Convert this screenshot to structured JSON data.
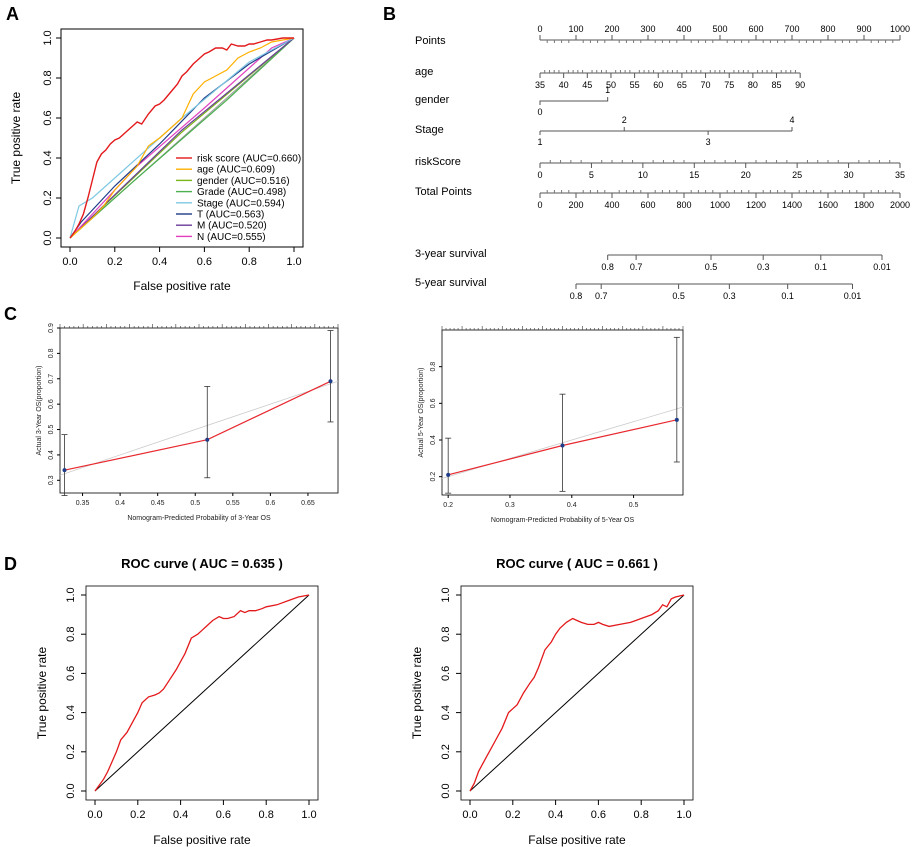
{
  "panel_labels": [
    "A",
    "B",
    "C",
    "D"
  ],
  "colors": {
    "risk": "#e31a1c",
    "age": "#ffb000",
    "gender": "#7cb518",
    "grade": "#4caf50",
    "stage": "#7ec8e3",
    "T": "#1f3c88",
    "M": "#6a3d9a",
    "N": "#e040c0",
    "calib": "#e8292f",
    "ideal": "#cccccc",
    "roc": "#e31a1c"
  },
  "chart_data": [
    {
      "id": "A",
      "type": "line",
      "xlabel": "False positive rate",
      "ylabel": "True positive rate",
      "xlim": [
        0,
        1
      ],
      "ylim": [
        0,
        1
      ],
      "ticks": [
        "0.0",
        "0.2",
        "0.4",
        "0.6",
        "0.8",
        "1.0"
      ],
      "series": [
        {
          "key": "risk",
          "name": "risk score (AUC=0.660)",
          "x": [
            0,
            0.02,
            0.04,
            0.06,
            0.08,
            0.1,
            0.12,
            0.14,
            0.16,
            0.18,
            0.2,
            0.22,
            0.25,
            0.28,
            0.3,
            0.32,
            0.35,
            0.38,
            0.4,
            0.42,
            0.45,
            0.48,
            0.5,
            0.52,
            0.55,
            0.58,
            0.6,
            0.62,
            0.65,
            0.68,
            0.7,
            0.72,
            0.75,
            0.78,
            0.8,
            0.82,
            0.85,
            0.88,
            0.9,
            0.95,
            1.0
          ],
          "y": [
            0,
            0.03,
            0.07,
            0.12,
            0.2,
            0.29,
            0.38,
            0.42,
            0.44,
            0.47,
            0.49,
            0.5,
            0.53,
            0.56,
            0.58,
            0.57,
            0.62,
            0.66,
            0.67,
            0.69,
            0.73,
            0.77,
            0.81,
            0.83,
            0.87,
            0.9,
            0.92,
            0.93,
            0.95,
            0.95,
            0.94,
            0.97,
            0.96,
            0.96,
            0.97,
            0.97,
            0.98,
            0.99,
            0.99,
            1.0,
            1.0
          ]
        },
        {
          "key": "age",
          "name": "age (AUC=0.609)",
          "x": [
            0,
            0.05,
            0.1,
            0.15,
            0.2,
            0.25,
            0.3,
            0.35,
            0.4,
            0.45,
            0.5,
            0.55,
            0.6,
            0.65,
            0.7,
            0.75,
            0.8,
            0.85,
            0.9,
            0.95,
            1.0
          ],
          "y": [
            0,
            0.05,
            0.1,
            0.16,
            0.24,
            0.3,
            0.36,
            0.46,
            0.5,
            0.55,
            0.6,
            0.72,
            0.78,
            0.81,
            0.84,
            0.9,
            0.93,
            0.95,
            0.98,
            0.99,
            1.0
          ]
        },
        {
          "key": "gender",
          "name": "gender (AUC=0.516)",
          "x": [
            0,
            0.5,
            1.0
          ],
          "y": [
            0,
            0.53,
            1.0
          ]
        },
        {
          "key": "grade",
          "name": "Grade (AUC=0.498)",
          "x": [
            0,
            0.3,
            0.7,
            1.0
          ],
          "y": [
            0,
            0.3,
            0.69,
            1.0
          ]
        },
        {
          "key": "stage",
          "name": "Stage (AUC=0.594)",
          "x": [
            0,
            0.04,
            0.1,
            0.25,
            0.5,
            0.8,
            1.0
          ],
          "y": [
            0,
            0.16,
            0.2,
            0.35,
            0.6,
            0.88,
            1.0
          ]
        },
        {
          "key": "T",
          "name": "T (AUC=0.563)",
          "x": [
            0,
            0.05,
            0.2,
            0.4,
            0.6,
            0.8,
            1.0
          ],
          "y": [
            0,
            0.08,
            0.26,
            0.47,
            0.7,
            0.87,
            1.0
          ]
        },
        {
          "key": "M",
          "name": "M (AUC=0.520)",
          "x": [
            0,
            0.5,
            1.0
          ],
          "y": [
            0,
            0.54,
            1.0
          ]
        },
        {
          "key": "N",
          "name": "N (AUC=0.555)",
          "x": [
            0,
            0.3,
            0.6,
            0.9,
            1.0
          ],
          "y": [
            0,
            0.36,
            0.65,
            0.95,
            1.0
          ]
        }
      ]
    },
    {
      "id": "C1",
      "type": "scatter",
      "xlabel": "Nomogram-Predicted Probability of 3-Year OS",
      "ylabel": "Actual 3-Year OS(proportion)",
      "xlim": [
        0.32,
        0.69
      ],
      "ylim": [
        0.25,
        0.9
      ],
      "xticks": [
        0.35,
        0.4,
        0.45,
        0.5,
        0.55,
        0.6,
        0.65
      ],
      "yticks": [
        0.3,
        0.4,
        0.5,
        0.6,
        0.7,
        0.8,
        0.9
      ],
      "points": [
        {
          "x": 0.326,
          "y": 0.34,
          "lo": 0.24,
          "hi": 0.48
        },
        {
          "x": 0.516,
          "y": 0.46,
          "lo": 0.31,
          "hi": 0.67
        },
        {
          "x": 0.68,
          "y": 0.69,
          "lo": 0.53,
          "hi": 0.89
        }
      ]
    },
    {
      "id": "C2",
      "type": "scatter",
      "xlabel": "Nomogram-Predicted Probability of 5-Year OS",
      "ylabel": "Actual 5-Year OS(proportion)",
      "xlim": [
        0.19,
        0.58
      ],
      "ylim": [
        0.1,
        1.0
      ],
      "xticks": [
        0.2,
        0.3,
        0.4,
        0.5
      ],
      "yticks": [
        0.2,
        0.4,
        0.6,
        0.8
      ],
      "points": [
        {
          "x": 0.2,
          "y": 0.21,
          "lo": 0.11,
          "hi": 0.41
        },
        {
          "x": 0.385,
          "y": 0.37,
          "lo": 0.12,
          "hi": 0.65
        },
        {
          "x": 0.57,
          "y": 0.51,
          "lo": 0.28,
          "hi": 0.96
        }
      ]
    },
    {
      "id": "D1",
      "type": "line",
      "title": "ROC curve ( AUC =  0.635 )",
      "xlabel": "False positive rate",
      "ylabel": "True positive rate",
      "xlim": [
        0,
        1
      ],
      "ylim": [
        0,
        1
      ],
      "ticks": [
        "0.0",
        "0.2",
        "0.4",
        "0.6",
        "0.8",
        "1.0"
      ],
      "x": [
        0,
        0.02,
        0.04,
        0.06,
        0.08,
        0.1,
        0.12,
        0.15,
        0.18,
        0.2,
        0.22,
        0.25,
        0.28,
        0.3,
        0.32,
        0.35,
        0.38,
        0.4,
        0.42,
        0.45,
        0.48,
        0.5,
        0.52,
        0.55,
        0.58,
        0.6,
        0.62,
        0.65,
        0.68,
        0.7,
        0.72,
        0.75,
        0.78,
        0.8,
        0.85,
        0.9,
        0.95,
        1.0
      ],
      "y": [
        0,
        0.03,
        0.06,
        0.1,
        0.15,
        0.2,
        0.26,
        0.3,
        0.36,
        0.4,
        0.45,
        0.48,
        0.49,
        0.5,
        0.52,
        0.57,
        0.62,
        0.66,
        0.7,
        0.78,
        0.8,
        0.82,
        0.84,
        0.87,
        0.89,
        0.88,
        0.88,
        0.89,
        0.92,
        0.91,
        0.92,
        0.92,
        0.93,
        0.94,
        0.95,
        0.97,
        0.99,
        1.0
      ]
    },
    {
      "id": "D2",
      "type": "line",
      "title": "ROC curve ( AUC =  0.661 )",
      "xlabel": "False positive rate",
      "ylabel": "True positive rate",
      "xlim": [
        0,
        1
      ],
      "ylim": [
        0,
        1
      ],
      "ticks": [
        "0.0",
        "0.2",
        "0.4",
        "0.6",
        "0.8",
        "1.0"
      ],
      "x": [
        0,
        0.02,
        0.04,
        0.06,
        0.08,
        0.1,
        0.12,
        0.15,
        0.18,
        0.2,
        0.22,
        0.25,
        0.28,
        0.3,
        0.32,
        0.35,
        0.38,
        0.4,
        0.42,
        0.45,
        0.48,
        0.5,
        0.52,
        0.55,
        0.58,
        0.6,
        0.62,
        0.65,
        0.7,
        0.75,
        0.8,
        0.85,
        0.88,
        0.9,
        0.92,
        0.94,
        0.96,
        1.0
      ],
      "y": [
        0,
        0.04,
        0.1,
        0.14,
        0.18,
        0.22,
        0.26,
        0.32,
        0.4,
        0.42,
        0.44,
        0.5,
        0.55,
        0.58,
        0.63,
        0.72,
        0.76,
        0.8,
        0.83,
        0.86,
        0.88,
        0.87,
        0.86,
        0.85,
        0.85,
        0.86,
        0.85,
        0.84,
        0.85,
        0.86,
        0.88,
        0.9,
        0.92,
        0.95,
        0.94,
        0.98,
        0.99,
        1.0
      ]
    }
  ],
  "nomogram": {
    "rows": [
      {
        "label": "Points",
        "ticks": [
          "0",
          "100",
          "200",
          "300",
          "400",
          "500",
          "600",
          "700",
          "800",
          "900",
          "1000"
        ]
      },
      {
        "label": "age",
        "ticks": [
          "35",
          "40",
          "45",
          "50",
          "55",
          "60",
          "65",
          "70",
          "75",
          "80",
          "85",
          "90"
        ]
      },
      {
        "label": "gender",
        "ticks": [
          "0",
          "1"
        ]
      },
      {
        "label": "Stage",
        "ticks": [
          "1",
          "2",
          "3",
          "4"
        ]
      },
      {
        "label": "riskScore",
        "ticks": [
          "0",
          "5",
          "10",
          "15",
          "20",
          "25",
          "30",
          "35"
        ]
      },
      {
        "label": "Total Points",
        "ticks": [
          "0",
          "200",
          "400",
          "600",
          "800",
          "1000",
          "1200",
          "1400",
          "1600",
          "1800",
          "2000"
        ]
      },
      {
        "label": "3-year survival",
        "ticks": [
          "0.8",
          "0.7",
          "0.5",
          "0.3",
          "0.1",
          "0.01"
        ]
      },
      {
        "label": "5-year survival",
        "ticks": [
          "0.8",
          "0.7",
          "0.5",
          "0.3",
          "0.1",
          "0.01"
        ]
      }
    ]
  }
}
